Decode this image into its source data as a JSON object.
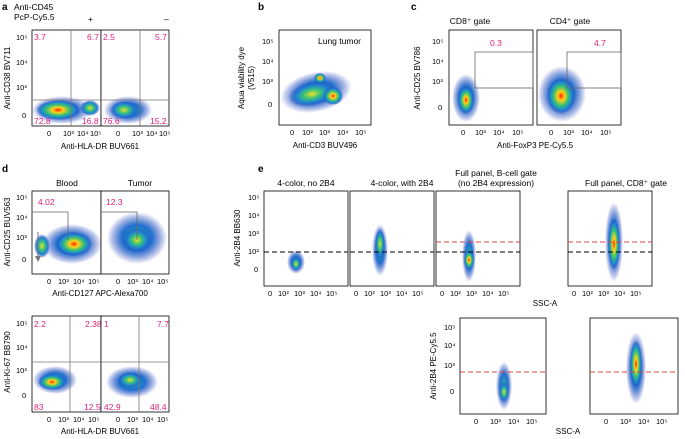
{
  "colors": {
    "gate_pct": "#e0207f",
    "dash_black": "#000000",
    "dash_red": "#e0403c"
  },
  "panel_a": {
    "label": "a",
    "row_label_1": "Anti-CD45",
    "row_label_2": "PcP-Cy5.5",
    "col_plus": "+",
    "col_minus": "–",
    "ylabel": "Anti-CD38 BV711",
    "xlabel": "Anti-HLA-DR BUV661",
    "ytick_5": "10⁵",
    "ytick_4": "10⁴",
    "ytick_3": "10³",
    "ytick_0": "0",
    "xtick_0": "0",
    "xtick_3": "10³",
    "xtick_4": "10⁴",
    "xtick_5": "10⁵",
    "plus": {
      "tl": "3.7",
      "tr": "6.7",
      "bl": "72.8",
      "br": "16.8"
    },
    "minus": {
      "tl": "2.5",
      "tr": "5.7",
      "bl": "76.6",
      "br": "15.2"
    }
  },
  "panel_b": {
    "label": "b",
    "title": "Lung tumor",
    "ylabel_1": "Aqua viability dye",
    "ylabel_2": "(V515)",
    "xlabel": "Anti-CD3 BUV496",
    "xtick_0": "0",
    "xtick_2": "10²",
    "xtick_3": "10³",
    "xtick_4": "10⁴",
    "xtick_5": "10⁵",
    "ytick_5": "10⁵",
    "ytick_4": "10⁴",
    "ytick_3": "10³",
    "ytick_0": "0"
  },
  "panel_c": {
    "label": "c",
    "title_cd8": "CD8⁺ gate",
    "title_cd4": "CD4⁺ gate",
    "ylabel": "Anti-CD25 BV786",
    "xlabel": "Anti-FoxP3 PE-Cy5.5",
    "pct_cd8": "0.3",
    "pct_cd4": "4.7",
    "ytick_5": "10⁵",
    "ytick_4": "10⁴",
    "ytick_3": "10³",
    "ytick_0": "0",
    "xtick_0": "0",
    "xtick_3": "10³",
    "xtick_4": "10⁴",
    "xtick_5": "10⁵"
  },
  "panel_d": {
    "label": "d",
    "title_blood": "Blood",
    "title_tumor": "Tumor",
    "top_ylabel": "Anti-CD25 BUV563",
    "top_xlabel": "Anti-CD127 APC-Alexa700",
    "pct_blood": "4.02",
    "pct_tumor": "12.3",
    "bottom_ylabel": "Anti-Ki-67 BB790",
    "bottom_xlabel": "Anti-HLA-DR BUV661",
    "blood_q": {
      "tl": "2.2",
      "tr": "2.38",
      "bl": "83",
      "br": "12.5"
    },
    "tumor_q": {
      "tl": "1",
      "tr": "7.7",
      "bl": "42.9",
      "br": "48.4"
    },
    "ytick_5": "10⁵",
    "ytick_4": "10⁴",
    "ytick_3": "10³",
    "ytick_0": "0",
    "xtick_0": "0",
    "xtick_3": "10³",
    "xtick_4": "10⁴",
    "xtick_5": "10⁵"
  },
  "panel_e": {
    "label": "e",
    "title_1": "4-color, no 2B4",
    "title_2": "4-color, with 2B4",
    "title_3a": "Full panel, B-cell gate",
    "title_3b": "(no 2B4 expression)",
    "title_4": "Full panel, CD8⁺ gate",
    "top_ylabel": "Anti-2B4 BB630",
    "bottom_ylabel": "Anti-2B4 PE-Cy5.5",
    "xlabel": "SSC-A",
    "ytick_5": "10⁵",
    "ytick_4": "10⁴",
    "ytick_3": "10³",
    "ytick_2": "10²",
    "ytick_0": "0",
    "xtick_0": "0",
    "xtick_2": "10²",
    "xtick_3": "10³",
    "xtick_4": "10⁴",
    "xtick_5": "10⁵"
  }
}
